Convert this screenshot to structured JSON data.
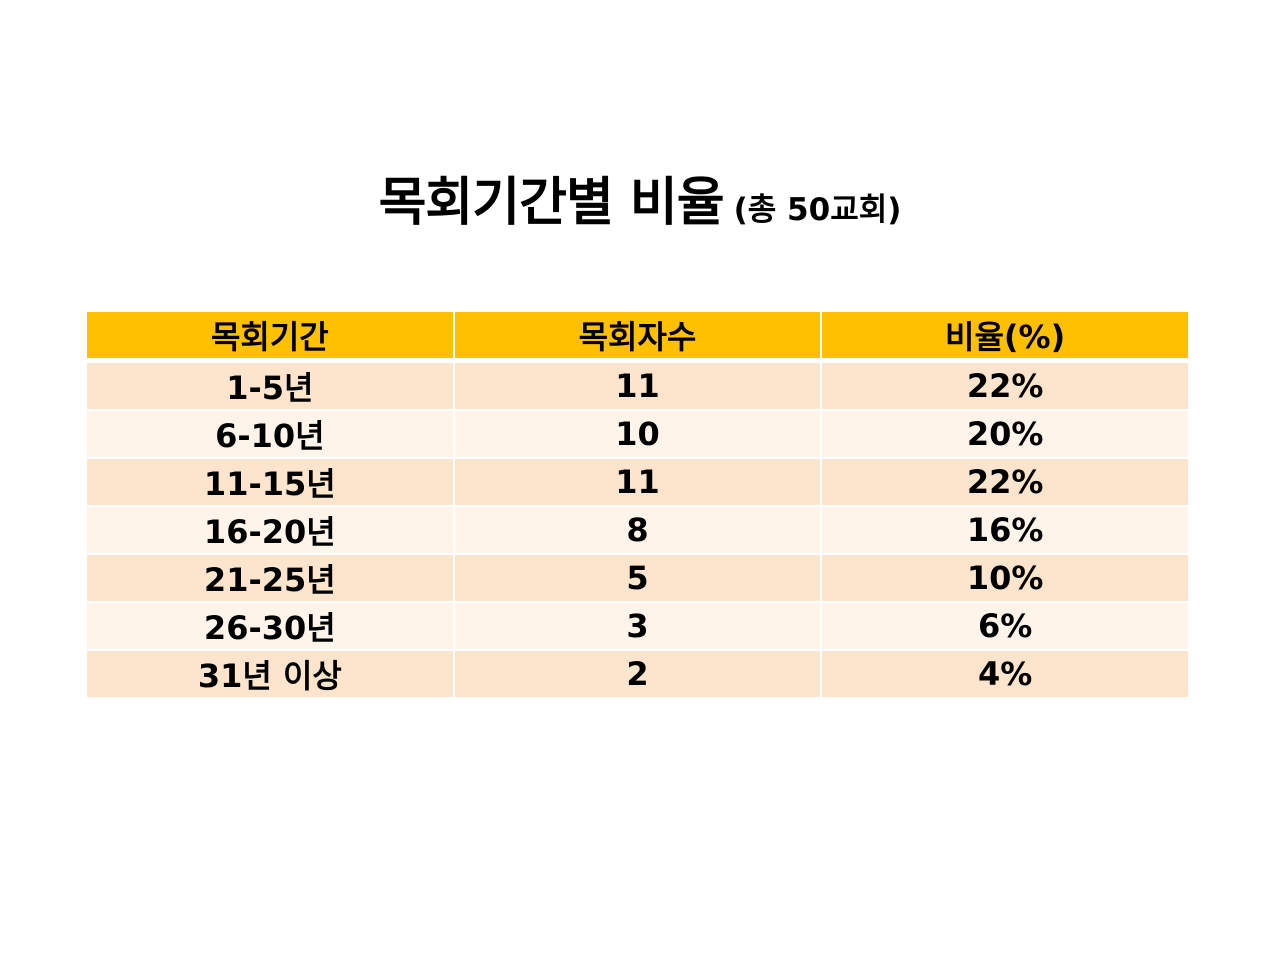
{
  "slide": {
    "background": "#FFFFFF",
    "title": {
      "main": "목회기간별 비율",
      "suffix": "(총 50교회)"
    },
    "table": {
      "headers": [
        "목회기간",
        "목회자수",
        "비율(%)"
      ],
      "rows": [
        [
          "1-5년",
          "11",
          "22%"
        ],
        [
          "6-10년",
          "10",
          "20%"
        ],
        [
          "11-15년",
          "11",
          "22%"
        ],
        [
          "16-20년",
          "8",
          "16%"
        ],
        [
          "21-25년",
          "5",
          "10%"
        ],
        [
          "26-30년",
          "3",
          "6%"
        ],
        [
          "31년 이상",
          "2",
          "4%"
        ]
      ],
      "colors": {
        "header_bg": "#FFC000",
        "row_band_dark": "#FCE5CC",
        "row_band_light": "#FEF4EA",
        "grid_gap": "#FFFFFF",
        "text": "#000000"
      }
    }
  },
  "chart_data": {
    "type": "table",
    "title": "목회기간별 비율 (총 50교회)",
    "columns": [
      "목회기간",
      "목회자수",
      "비율(%)"
    ],
    "rows": [
      {
        "목회기간": "1-5년",
        "목회자수": 11,
        "비율": "22%"
      },
      {
        "목회기간": "6-10년",
        "목회자수": 10,
        "비율": "20%"
      },
      {
        "목회기간": "11-15년",
        "목회자수": 11,
        "비율": "22%"
      },
      {
        "목회기간": "16-20년",
        "목회자수": 8,
        "비율": "16%"
      },
      {
        "목회기간": "21-25년",
        "목회자수": 5,
        "비율": "10%"
      },
      {
        "목회기간": "26-30년",
        "목회자수": 3,
        "비율": "6%"
      },
      {
        "목회기간": "31년 이상",
        "목회자수": 2,
        "비율": "4%"
      }
    ],
    "total": 50
  }
}
